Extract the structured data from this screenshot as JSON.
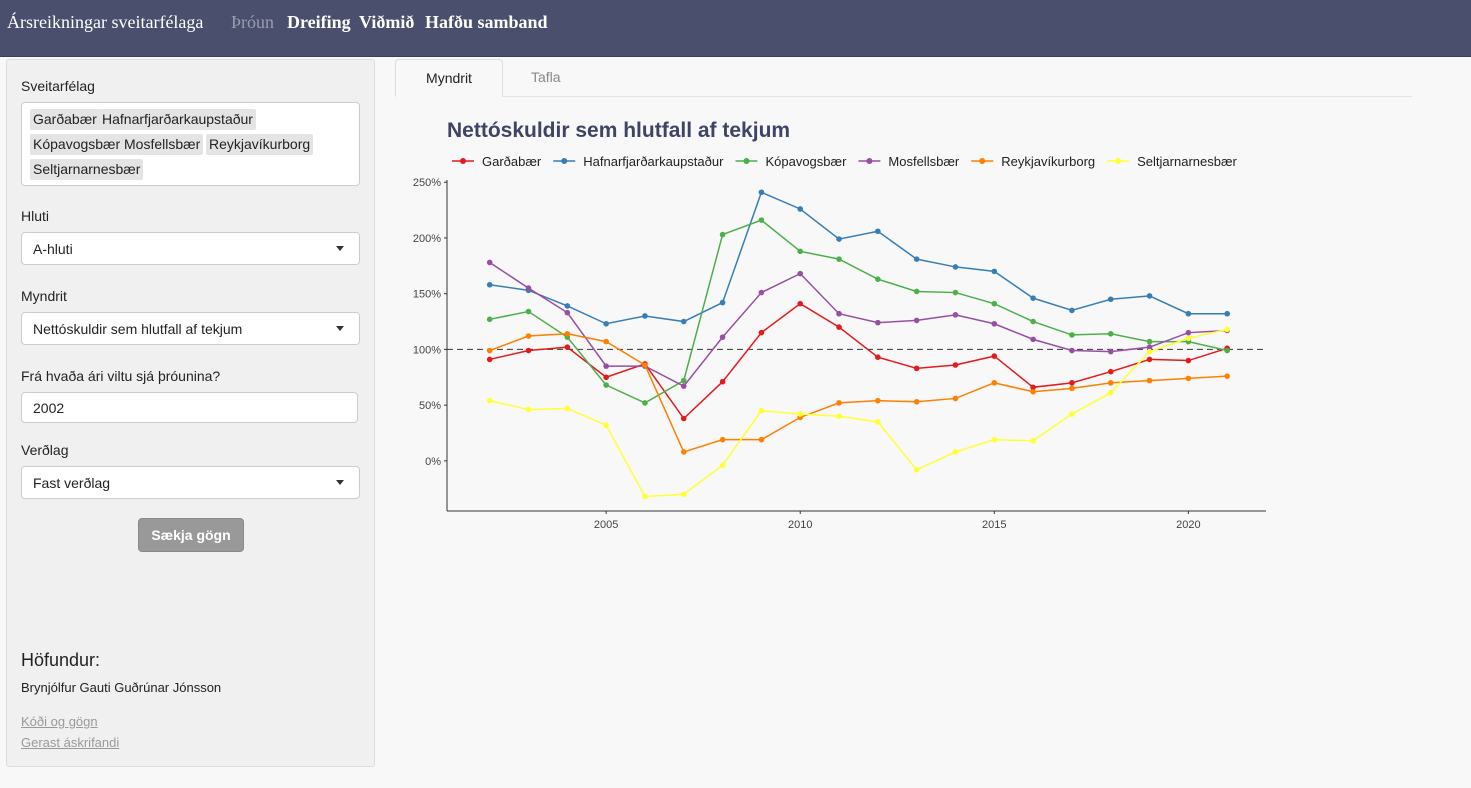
{
  "navbar": {
    "brand": "Ársreikningar sveitarfélaga",
    "items": [
      {
        "label": "Þróun",
        "active": true
      },
      {
        "label": "Dreifing",
        "active": false
      },
      {
        "label": "Viðmið",
        "active": false
      },
      {
        "label": "Hafðu samband",
        "active": false
      }
    ]
  },
  "sidebar": {
    "municipality_label": "Sveitarfélag",
    "municipalities": [
      "Garðabær",
      "Hafnarfjarðarkaupstaður",
      "Kópavogsbær",
      "Mosfellsbær",
      "Reykjavíkurborg",
      "Seltjarnarnesbær"
    ],
    "part_label": "Hluti",
    "part_value": "A-hluti",
    "plot_label": "Myndrit",
    "plot_value": "Nettóskuldir sem hlutfall af tekjum",
    "year_label": "Frá hvaða ári viltu sjá þróunina?",
    "year_value": "2002",
    "price_label": "Verðlag",
    "price_value": "Fast verðlag",
    "fetch_button": "Sækja gögn",
    "author_heading": "Höfundur:",
    "author_name": "Brynjólfur Gauti Guðrúnar Jónsson",
    "links": [
      "Kóði og gögn",
      "Gerast áskrifandi"
    ]
  },
  "tabs": [
    "Myndrit",
    "Tafla"
  ],
  "chart_data": {
    "type": "line",
    "title": "Nettóskuldir sem hlutfall af tekjum",
    "xlabel": "",
    "ylabel": "",
    "x": [
      2002,
      2003,
      2004,
      2005,
      2006,
      2007,
      2008,
      2009,
      2010,
      2011,
      2012,
      2013,
      2014,
      2015,
      2016,
      2017,
      2018,
      2019,
      2020,
      2021
    ],
    "x_ticks": [
      2005,
      2010,
      2015,
      2020
    ],
    "y_ticks": [
      0,
      50,
      100,
      150,
      200,
      250
    ],
    "y_tick_labels": [
      "0%",
      "50%",
      "100%",
      "150%",
      "200%",
      "250%"
    ],
    "xlim": [
      2000.9,
      2022.0
    ],
    "ylim": [
      -45,
      252
    ],
    "reference_line": 100,
    "legend_position": "top",
    "grid": false,
    "series": [
      {
        "name": "Garðabær",
        "color": "#e41a1c",
        "values": [
          91,
          99,
          102,
          75,
          87,
          38,
          71,
          115,
          141,
          120,
          93,
          83,
          86,
          94,
          66,
          70,
          80,
          91,
          90,
          101
        ]
      },
      {
        "name": "Hafnarfjarðarkaupstaður",
        "color": "#377eb8",
        "values": [
          158,
          153,
          139,
          123,
          130,
          125,
          142,
          241,
          226,
          199,
          206,
          181,
          174,
          170,
          146,
          135,
          145,
          148,
          132,
          132
        ]
      },
      {
        "name": "Kópavogsbær",
        "color": "#4daf4a",
        "values": [
          127,
          134,
          111,
          68,
          52,
          72,
          203,
          216,
          188,
          181,
          163,
          152,
          151,
          141,
          125,
          113,
          114,
          107,
          107,
          99
        ]
      },
      {
        "name": "Mosfellsbær",
        "color": "#984ea3",
        "values": [
          178,
          155,
          133,
          85,
          85,
          67,
          111,
          151,
          168,
          132,
          124,
          126,
          131,
          123,
          109,
          99,
          98,
          102,
          115,
          117
        ]
      },
      {
        "name": "Reykjavíkurborg",
        "color": "#ff7f00",
        "values": [
          99,
          112,
          114,
          107,
          86,
          8,
          19,
          19,
          39,
          52,
          54,
          53,
          56,
          70,
          62,
          65,
          70,
          72,
          74,
          76
        ]
      },
      {
        "name": "Seltjarnarnesbær",
        "color": "#ffff33",
        "values": [
          54,
          46,
          47,
          32,
          -32,
          -30,
          -4,
          45,
          42,
          40,
          35,
          -8,
          8,
          19,
          18,
          42,
          61,
          98,
          110,
          118
        ]
      }
    ]
  }
}
